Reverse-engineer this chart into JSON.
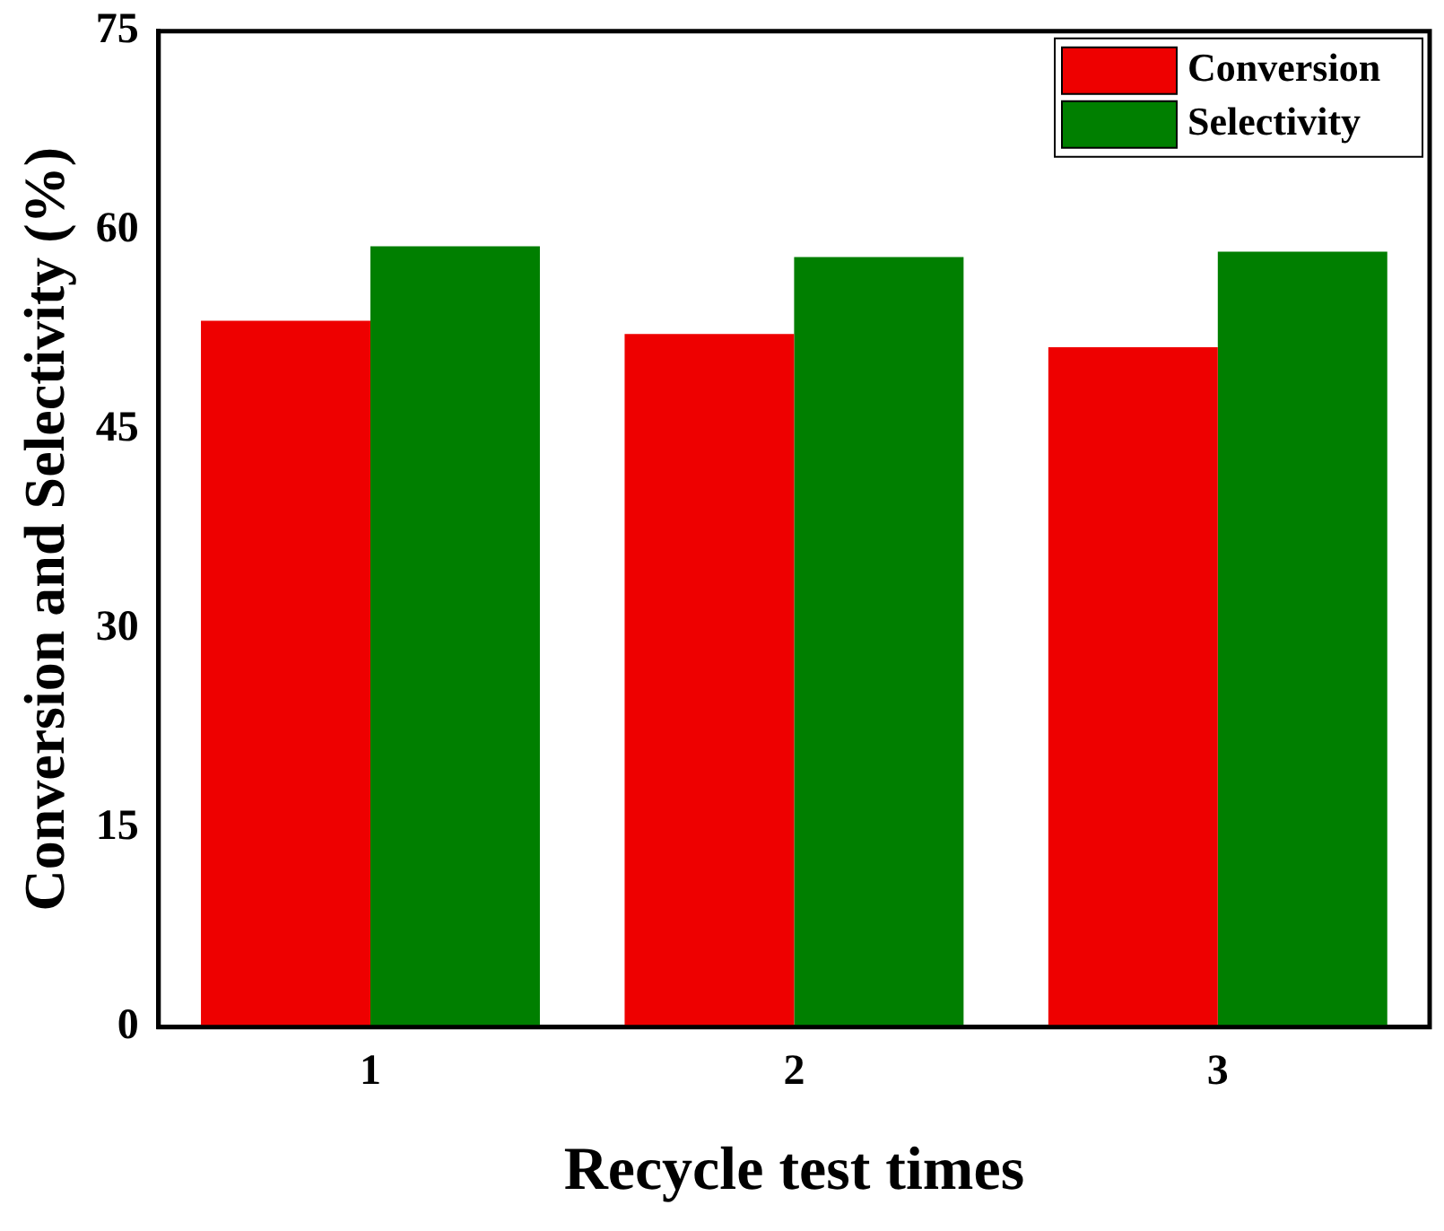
{
  "chart_data": {
    "type": "bar",
    "xlabel": "Recycle test times",
    "ylabel": "Conversion and Selectivity (%)",
    "categories": [
      "1",
      "2",
      "3"
    ],
    "series": [
      {
        "name": "Conversion",
        "color": "#ee0000",
        "values": [
          53.2,
          52.2,
          51.2
        ]
      },
      {
        "name": "Selectivity",
        "color": "#007f00",
        "values": [
          58.8,
          58.0,
          58.4
        ]
      }
    ],
    "ylim": [
      0,
      75
    ],
    "yticks": [
      0,
      15,
      30,
      45,
      60,
      75
    ],
    "grid": false,
    "legend": "top right"
  }
}
